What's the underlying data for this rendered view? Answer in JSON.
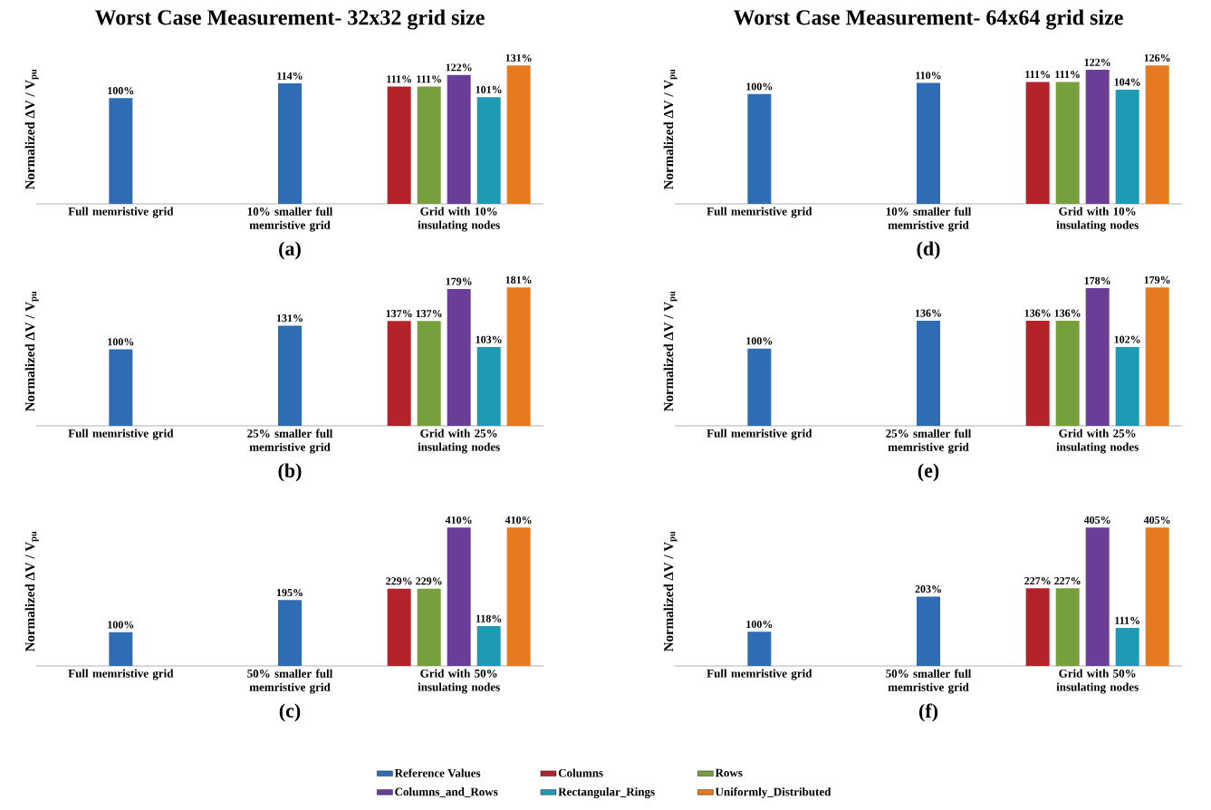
{
  "chart_data": [
    {
      "type": "bar",
      "title": "Worst Case Measurement- 32x32 grid size",
      "xlabel": "(a)",
      "ylabel": "Normalized ΔV / V$_{pu}$",
      "categories": [
        "Full memristive grid",
        "10% smaller full memristive grid",
        "Grid with 10% insulating nodes"
      ],
      "tick_labels": "x",
      "legend": "bottom",
      "series": [
        {
          "name": "Reference Values",
          "color": "#2e6db4",
          "values": [
            100,
            114,
            null
          ],
          "value_labels": [
            "100%",
            "114%",
            null
          ]
        },
        {
          "name": "Columns",
          "color": "#b5232a",
          "values": [
            null,
            null,
            111
          ],
          "value_labels": [
            null,
            null,
            "111%"
          ]
        },
        {
          "name": "Rows",
          "color": "#77a03c",
          "values": [
            null,
            null,
            111
          ],
          "value_labels": [
            null,
            null,
            "111%"
          ]
        },
        {
          "name": "Columns_and_Rows",
          "color": "#6a3d98",
          "values": [
            null,
            null,
            122
          ],
          "value_labels": [
            null,
            null,
            "122%"
          ]
        },
        {
          "name": "Rectangular_Rings",
          "color": "#1f9ab5",
          "values": [
            null,
            null,
            101
          ],
          "value_labels": [
            null,
            null,
            "101%"
          ]
        },
        {
          "name": "Uniformly_Distributed",
          "color": "#e57a21",
          "values": [
            null,
            null,
            131
          ],
          "value_labels": [
            null,
            null,
            "131%"
          ]
        }
      ]
    },
    {
      "type": "bar",
      "xlabel": "(b)",
      "ylabel": "Normalized ΔV / V$_{pu}$",
      "categories": [
        "Full memristive grid",
        "25% smaller full memristive grid",
        "Grid with 25% insulating nodes"
      ],
      "tick_labels": "x",
      "series": [
        {
          "color": "#2e6db4",
          "values": [
            100,
            131,
            null
          ],
          "value_labels": [
            "100%",
            "131%",
            null
          ]
        },
        {
          "color": "#b5232a",
          "values": [
            null,
            null,
            137
          ],
          "value_labels": [
            null,
            null,
            "137%"
          ]
        },
        {
          "color": "#77a03c",
          "values": [
            null,
            null,
            137
          ],
          "value_labels": [
            null,
            null,
            "137%"
          ]
        },
        {
          "color": "#6a3d98",
          "values": [
            null,
            null,
            179
          ],
          "value_labels": [
            null,
            null,
            "179%"
          ]
        },
        {
          "color": "#1f9ab5",
          "values": [
            null,
            null,
            103
          ],
          "value_labels": [
            null,
            null,
            "103%"
          ]
        },
        {
          "color": "#e57a21",
          "values": [
            null,
            null,
            181
          ],
          "value_labels": [
            null,
            null,
            "181%"
          ]
        }
      ]
    },
    {
      "type": "bar",
      "xlabel": "(c)",
      "ylabel": "Normalized ΔV / V$_{pu}$",
      "categories": [
        "Full memristive grid",
        "50% smaller full memristive grid",
        "Grid with 50% insulating nodes"
      ],
      "tick_labels": "x",
      "series": [
        {
          "color": "#2e6db4",
          "values": [
            100,
            195,
            null
          ],
          "value_labels": [
            "100%",
            "195%",
            null
          ]
        },
        {
          "color": "#b5232a",
          "values": [
            null,
            null,
            229
          ],
          "value_labels": [
            null,
            null,
            "229%"
          ]
        },
        {
          "color": "#77a03c",
          "values": [
            null,
            null,
            229
          ],
          "value_labels": [
            null,
            null,
            "229%"
          ]
        },
        {
          "color": "#6a3d98",
          "values": [
            null,
            null,
            410
          ],
          "value_labels": [
            null,
            null,
            "410%"
          ]
        },
        {
          "color": "#1f9ab5",
          "values": [
            null,
            null,
            118
          ],
          "value_labels": [
            null,
            null,
            "118%"
          ]
        },
        {
          "color": "#e57a21",
          "values": [
            null,
            null,
            410
          ],
          "value_labels": [
            null,
            null,
            "410%"
          ]
        }
      ]
    },
    {
      "type": "bar",
      "title": "Worst Case Measurement- 64x64 grid size",
      "xlabel": "(d)",
      "ylabel": "Normalized ΔV / V$_{pu}$",
      "categories": [
        "Full memristive grid",
        "10% smaller full memristive grid",
        "Grid with 10% insulating nodes"
      ],
      "tick_labels": "x",
      "series": [
        {
          "color": "#2e6db4",
          "values": [
            100,
            110,
            null
          ],
          "value_labels": [
            "100%",
            "110%",
            null
          ]
        },
        {
          "color": "#b5232a",
          "values": [
            null,
            null,
            111
          ],
          "value_labels": [
            null,
            null,
            "111%"
          ]
        },
        {
          "color": "#77a03c",
          "values": [
            null,
            null,
            111
          ],
          "value_labels": [
            null,
            null,
            "111%"
          ]
        },
        {
          "color": "#6a3d98",
          "values": [
            null,
            null,
            122
          ],
          "value_labels": [
            null,
            null,
            "122%"
          ]
        },
        {
          "color": "#1f9ab5",
          "values": [
            null,
            null,
            104
          ],
          "value_labels": [
            null,
            null,
            "104%"
          ]
        },
        {
          "color": "#e57a21",
          "values": [
            null,
            null,
            126
          ],
          "value_labels": [
            null,
            null,
            "126%"
          ]
        }
      ]
    },
    {
      "type": "bar",
      "xlabel": "(e)",
      "ylabel": "Normalized ΔV / V$_{pu}$",
      "categories": [
        "Full memristive grid",
        "25% smaller full memristive grid",
        "Grid with 25% insulating nodes"
      ],
      "tick_labels": "x",
      "series": [
        {
          "color": "#2e6db4",
          "values": [
            100,
            136,
            null
          ],
          "value_labels": [
            "100%",
            "136%",
            null
          ]
        },
        {
          "color": "#b5232a",
          "values": [
            null,
            null,
            136
          ],
          "value_labels": [
            null,
            null,
            "136%"
          ]
        },
        {
          "color": "#77a03c",
          "values": [
            null,
            null,
            136
          ],
          "value_labels": [
            null,
            null,
            "136%"
          ]
        },
        {
          "color": "#6a3d98",
          "values": [
            null,
            null,
            178
          ],
          "value_labels": [
            null,
            null,
            "178%"
          ]
        },
        {
          "color": "#1f9ab5",
          "values": [
            null,
            null,
            102
          ],
          "value_labels": [
            null,
            null,
            "102%"
          ]
        },
        {
          "color": "#e57a21",
          "values": [
            null,
            null,
            179
          ],
          "value_labels": [
            null,
            null,
            "179%"
          ]
        }
      ]
    },
    {
      "type": "bar",
      "xlabel": "(f)",
      "ylabel": "Normalized ΔV / V$_{pu}$",
      "categories": [
        "Full memristive grid",
        "50% smaller full memristive grid",
        "Grid with 50% insulating nodes"
      ],
      "tick_labels": "x",
      "series": [
        {
          "color": "#2e6db4",
          "values": [
            100,
            203,
            null
          ],
          "value_labels": [
            "100%",
            "203%",
            null
          ]
        },
        {
          "color": "#b5232a",
          "values": [
            null,
            null,
            227
          ],
          "value_labels": [
            null,
            null,
            "227%"
          ]
        },
        {
          "color": "#77a03c",
          "values": [
            null,
            null,
            227
          ],
          "value_labels": [
            null,
            null,
            "227%"
          ]
        },
        {
          "color": "#6a3d98",
          "values": [
            null,
            null,
            405
          ],
          "value_labels": [
            null,
            null,
            "405%"
          ]
        },
        {
          "color": "#1f9ab5",
          "values": [
            null,
            null,
            111
          ],
          "value_labels": [
            null,
            null,
            "111%"
          ]
        },
        {
          "color": "#e57a21",
          "values": [
            null,
            null,
            405
          ],
          "value_labels": [
            null,
            null,
            "405%"
          ]
        }
      ]
    }
  ]
}
